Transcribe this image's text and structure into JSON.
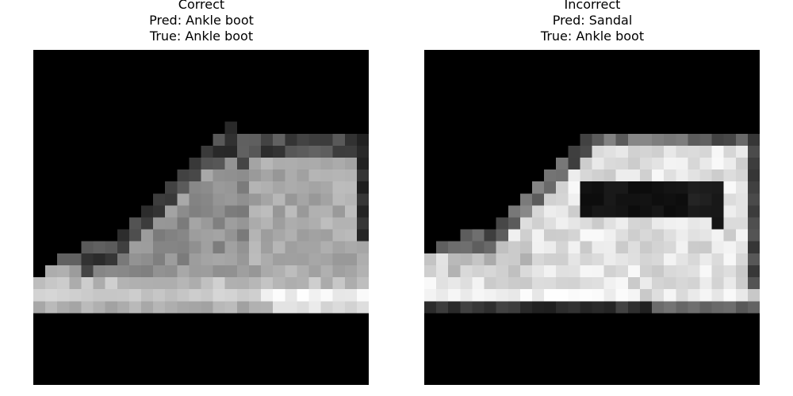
{
  "figure": {
    "panels": [
      {
        "status": "Correct",
        "pred": "Pred: Ankle boot",
        "true_label": "True: Ankle boot",
        "image_desc": "grayscale 28x28 ankle boot, gray tones, facing left"
      },
      {
        "status": "Incorrect",
        "pred": "Pred: Sandal",
        "true_label": "True: Ankle boot",
        "image_desc": "grayscale 28x28 ankle boot with bright strap-like highlights, facing left"
      }
    ],
    "colors": {
      "background": "#000000",
      "text": "#000000",
      "page": "#ffffff"
    }
  }
}
